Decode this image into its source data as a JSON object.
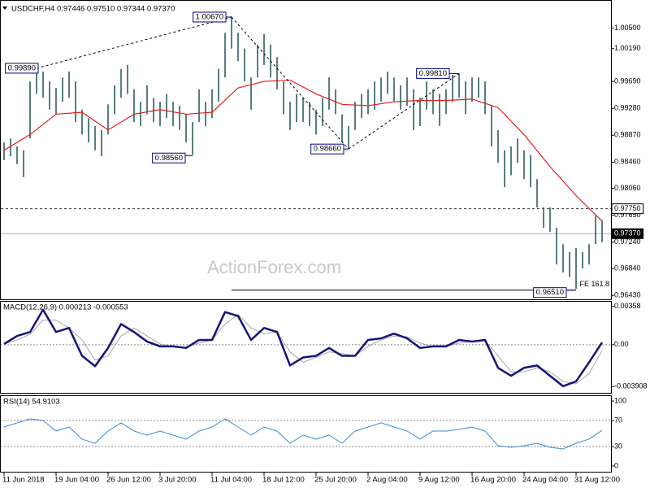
{
  "chart_data": [
    {
      "type": "ohlc",
      "header": "USDCHF,H4 0.97446 0.97510 0.97344 0.97370",
      "watermark": "ActionForex.com",
      "color": "#2e5e5a",
      "categories": [
        "11 Jun 2018",
        null,
        null,
        null,
        null,
        null,
        null,
        null,
        "19 Jun 04:00",
        null,
        null,
        null,
        null,
        null,
        null,
        null,
        "26 Jun 12:00",
        null,
        null,
        null,
        null,
        null,
        null,
        null,
        "3 Jul 20:00",
        null,
        null,
        null,
        null,
        null,
        null,
        null,
        "11 Jul 04:00",
        null,
        null,
        null,
        null,
        null,
        null,
        null,
        "18 Jul 12:00",
        null,
        null,
        null,
        null,
        null,
        null,
        null,
        "25 Jul 20:00",
        null,
        null,
        null,
        null,
        null,
        null,
        null,
        "2 Aug 04:00",
        null,
        null,
        null,
        null,
        null,
        null,
        null,
        "9 Aug 12:00",
        null,
        null,
        null,
        null,
        null,
        null,
        null,
        "16 Aug 20:00",
        null,
        null,
        null,
        null,
        null,
        null,
        null,
        "24 Aug 04:00",
        null,
        null,
        null,
        null,
        null,
        null,
        null,
        "31 Aug 12:00",
        null,
        null,
        null,
        null
      ],
      "high": [
        0.9876,
        0.9882,
        0.987,
        0.9864,
        0.9969,
        0.9988,
        0.9984,
        0.9969,
        0.9959,
        0.9975,
        0.9984,
        0.9969,
        0.9926,
        0.9913,
        0.9901,
        0.9895,
        0.9934,
        0.9963,
        0.9988,
        0.9994,
        0.9957,
        0.9938,
        0.9963,
        0.9944,
        0.9938,
        0.995,
        0.9938,
        0.9932,
        0.9919,
        0.9907,
        0.9957,
        0.9938,
        0.9957,
        0.9988,
        1.0043,
        1.0068,
        1.0043,
        1.0019,
        0.9975,
        1.0025,
        1.0041,
        1.0025,
        1.0006,
        0.9969,
        0.9938,
        0.995,
        0.9944,
        0.9938,
        0.9926,
        0.9944,
        0.9975,
        0.9957,
        0.9919,
        0.9901,
        0.9938,
        0.995,
        0.9957,
        0.9969,
        0.9975,
        0.9984,
        0.9975,
        0.9963,
        0.9975,
        0.9957,
        0.9944,
        0.9969,
        0.9957,
        0.995,
        0.9957,
        0.9979,
        0.9981,
        0.9969,
        0.9975,
        0.9975,
        0.9969,
        0.9932,
        0.9895,
        0.9864,
        0.987,
        0.9882,
        0.9864,
        0.9857,
        0.982,
        0.9777,
        0.9777,
        0.9746,
        0.9721,
        0.9709,
        0.9715,
        0.9709,
        0.9721,
        0.9764,
        0.9758
      ],
      "low": [
        0.9849,
        0.9855,
        0.9843,
        0.9823,
        0.9882,
        0.995,
        0.9944,
        0.9926,
        0.9919,
        0.9938,
        0.9944,
        0.9907,
        0.9888,
        0.9876,
        0.9864,
        0.9855,
        0.9888,
        0.9919,
        0.9944,
        0.995,
        0.9907,
        0.9901,
        0.9919,
        0.9907,
        0.9901,
        0.9913,
        0.9901,
        0.9895,
        0.9876,
        0.9857,
        0.9907,
        0.9901,
        0.9913,
        0.9938,
        0.9975,
        1.0019,
        1.0,
        0.9969,
        0.9926,
        0.9975,
        0.9994,
        0.9975,
        0.9957,
        0.9919,
        0.9895,
        0.9907,
        0.9907,
        0.9901,
        0.9888,
        0.9901,
        0.9926,
        0.9919,
        0.9876,
        0.9867,
        0.9895,
        0.9913,
        0.9919,
        0.9926,
        0.9938,
        0.995,
        0.9938,
        0.9926,
        0.9932,
        0.9895,
        0.9901,
        0.9926,
        0.9919,
        0.9901,
        0.9919,
        0.9938,
        0.9944,
        0.9919,
        0.9938,
        0.9944,
        0.9919,
        0.987,
        0.9845,
        0.9808,
        0.9826,
        0.9845,
        0.982,
        0.9808,
        0.9777,
        0.9746,
        0.974,
        0.969,
        0.9678,
        0.9671,
        0.9653,
        0.9684,
        0.969,
        0.9721,
        0.9724
      ],
      "ma": {
        "color": "#e02020",
        "x": [
          0,
          4,
          8,
          12,
          16,
          20,
          24,
          28,
          32,
          36,
          40,
          44,
          48,
          52,
          56,
          60,
          64,
          68,
          72,
          76,
          80,
          84,
          88,
          92
        ],
        "values": [
          0.9864,
          0.9888,
          0.9919,
          0.9922,
          0.9895,
          0.9919,
          0.9926,
          0.9919,
          0.9922,
          0.9959,
          0.9969,
          0.9971,
          0.995,
          0.9934,
          0.9932,
          0.9938,
          0.994,
          0.994,
          0.9942,
          0.9929,
          0.9888,
          0.9839,
          0.9795,
          0.9756
        ]
      },
      "ylim": [
        0.9637,
        1.0093
      ],
      "yticks": [
        {
          "value": 1.005,
          "label": "1.00500"
        },
        {
          "value": 1.0019,
          "label": "1.00190"
        },
        {
          "value": 0.9969,
          "label": "0.99690"
        },
        {
          "value": 0.9928,
          "label": "0.99280"
        },
        {
          "value": 0.9887,
          "label": "0.98870"
        },
        {
          "value": 0.9846,
          "label": "0.98460"
        },
        {
          "value": 0.9806,
          "label": "0.98060"
        },
        {
          "value": 0.9765,
          "label": "0.97650"
        },
        {
          "value": 0.9724,
          "label": "0.97240"
        },
        {
          "value": 0.9684,
          "label": "0.96840"
        },
        {
          "value": 0.9643,
          "label": "0.96430"
        }
      ],
      "price_lines": [
        {
          "value": 0.9775,
          "label": "0.97750",
          "style": "dashed"
        },
        {
          "value": 0.9737,
          "label": "0.97370",
          "style": "current"
        }
      ],
      "fe": {
        "value": 0.9651,
        "label": "FE 161.8",
        "from": 35,
        "to": 88
      },
      "annotations": [
        {
          "label": "1.00670",
          "value": 1.0067,
          "index": 35
        },
        {
          "label": "0.99890",
          "value": 0.9989,
          "index": 5
        },
        {
          "label": "0.98560",
          "value": 0.9856,
          "index": 29
        },
        {
          "label": "0.98660",
          "value": 0.9866,
          "index": 53
        },
        {
          "label": "0.99810",
          "value": 0.9981,
          "index": 70
        },
        {
          "label": "0.96510",
          "value": 0.9651,
          "index": 88
        }
      ],
      "trendlines": [
        [
          1,
          0
        ],
        [
          0,
          3
        ],
        [
          3,
          4
        ]
      ]
    },
    {
      "type": "line",
      "title": "MACD(12,26,9) 0.000213 -0.000553",
      "x": [
        0,
        2,
        4,
        6,
        8,
        10,
        12,
        14,
        16,
        18,
        20,
        22,
        24,
        26,
        28,
        30,
        32,
        34,
        36,
        38,
        40,
        42,
        44,
        46,
        48,
        50,
        52,
        54,
        56,
        58,
        60,
        62,
        64,
        66,
        68,
        70,
        72,
        74,
        76,
        78,
        80,
        82,
        84,
        86,
        88,
        90,
        92
      ],
      "series": [
        {
          "color": "#a8a8a8",
          "width": 1,
          "values": [
            7e-05,
            0.00045,
            0.00097,
            0.00231,
            0.00231,
            0.00157,
            0.00045,
            -0.00142,
            -0.00104,
            0.00082,
            0.00157,
            0.00082,
            7e-05,
            -0.00015,
            -0.00022,
            0.00015,
            0.00045,
            0.00194,
            0.00283,
            0.00157,
            0.00104,
            0.00119,
            -0.00067,
            -0.00164,
            -0.00119,
            -0.00067,
            -0.00082,
            -0.00104,
            -0.00015,
            0.00045,
            0.00082,
            0.00075,
            0.00015,
            -0.00015,
            -0.00015,
            0.00015,
            0.0003,
            0.00037,
            -0.00104,
            -0.00254,
            -0.00254,
            -0.00216,
            -0.00254,
            -0.00343,
            -0.00366,
            -0.00269,
            -0.00055
          ]
        },
        {
          "color": "#14147a",
          "width": 2.5,
          "values": [
            7e-05,
            0.00082,
            0.00119,
            0.00328,
            0.00119,
            0.00157,
            -0.00104,
            -0.00201,
            -0.0003,
            0.00194,
            0.00119,
            0.0003,
            -0.00015,
            -0.00015,
            -0.0003,
            0.00045,
            0.00045,
            0.00306,
            0.00269,
            0.00045,
            0.00157,
            0.00119,
            -0.00194,
            -0.00119,
            -0.00104,
            -0.0003,
            -0.00104,
            -0.00104,
            0.00045,
            0.0006,
            0.00104,
            0.0006,
            -0.0003,
            -0.00015,
            -0.00015,
            0.00045,
            0.0003,
            0.00045,
            -0.00216,
            -0.00291,
            -0.00216,
            -0.00194,
            -0.00291,
            -0.00388,
            -0.00343,
            -0.00164,
            0.00021
          ]
        }
      ],
      "ylim": [
        -0.0045,
        0.0041
      ],
      "yticks": [
        0.00358,
        {
          "value": 0,
          "label": "0.00"
        },
        -0.003908
      ],
      "levels": [
        0
      ]
    },
    {
      "type": "line",
      "title": "RSI(14) 54.9103",
      "x": [
        0,
        2,
        4,
        6,
        8,
        10,
        12,
        14,
        16,
        18,
        20,
        22,
        24,
        26,
        28,
        30,
        32,
        34,
        36,
        38,
        40,
        42,
        44,
        46,
        48,
        50,
        52,
        54,
        56,
        58,
        60,
        62,
        64,
        66,
        68,
        70,
        72,
        74,
        76,
        78,
        80,
        82,
        84,
        86,
        88,
        90,
        92
      ],
      "series": [
        {
          "color": "#3a8ad6",
          "width": 1,
          "values": [
            60,
            66.3,
            72.5,
            70,
            53.8,
            60,
            41.3,
            35,
            53.8,
            66.3,
            53.8,
            47.5,
            53.8,
            47.5,
            41.3,
            53.8,
            60,
            72.5,
            60,
            47.5,
            60,
            53.8,
            35,
            47.5,
            41.3,
            47.5,
            35,
            53.8,
            60,
            66.3,
            60,
            53.8,
            41.3,
            53.8,
            53.8,
            56.3,
            60,
            53.8,
            31.3,
            28.8,
            31.3,
            35,
            28.8,
            26.3,
            35,
            41.3,
            54.9
          ]
        }
      ],
      "ylim": [
        -8.75,
        108.75
      ],
      "yticks": [
        100,
        70,
        30,
        0
      ],
      "levels": [
        70,
        30
      ]
    }
  ]
}
